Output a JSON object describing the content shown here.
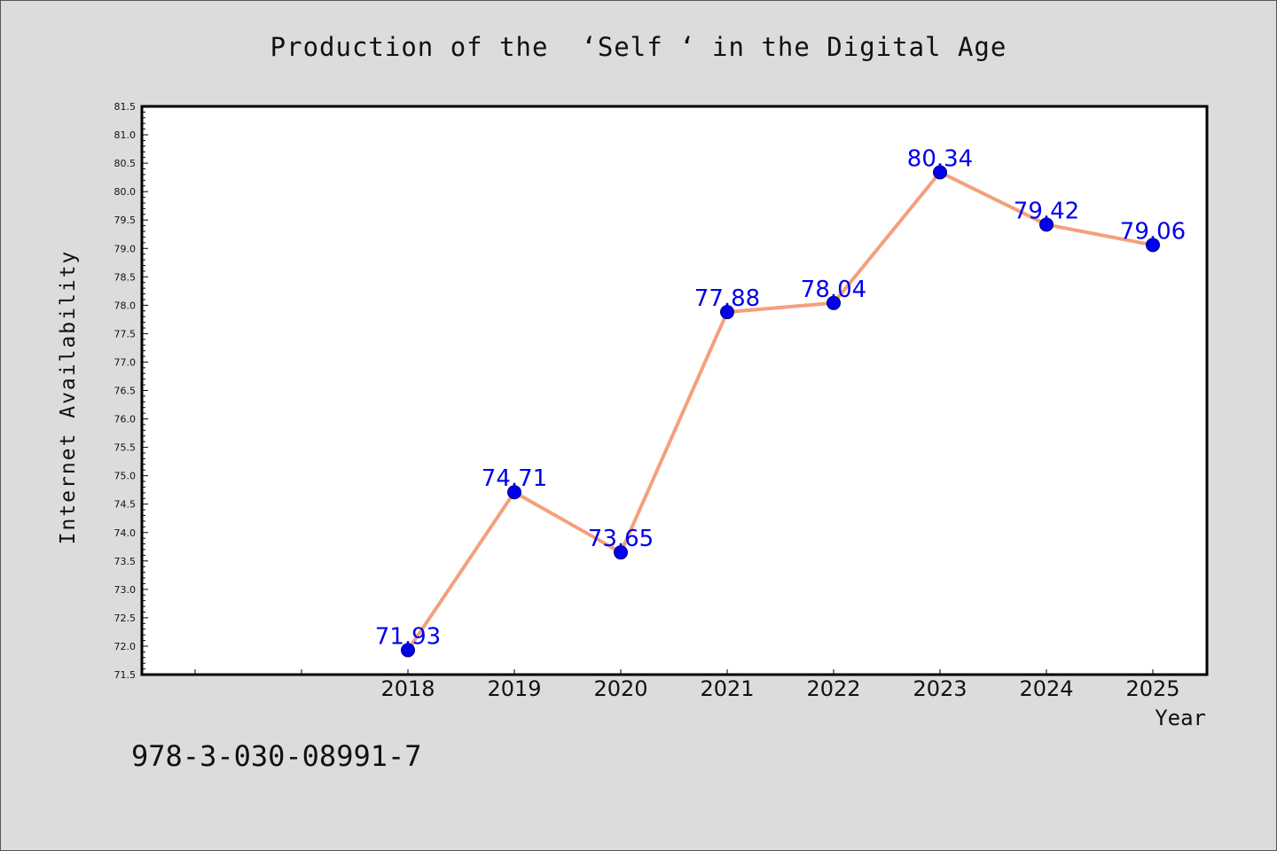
{
  "chart_data": {
    "type": "line",
    "title": "Production of the  ‘Self ‘ in the Digital Age",
    "xlabel": "Year",
    "ylabel": "Internet Availability",
    "x": [
      "2018",
      "2019",
      "2020",
      "2021",
      "2022",
      "2023",
      "2024",
      "2025"
    ],
    "series": [
      {
        "values": [
          71.93,
          74.71,
          73.65,
          77.88,
          78.04,
          80.34,
          79.42,
          79.06
        ],
        "labels": [
          "71.93",
          "74.71",
          "73.65",
          "77.88",
          "78.04",
          "80.34",
          "79.42",
          "79.06"
        ]
      }
    ],
    "ylim": [
      71.5,
      81.5
    ],
    "yticks": [
      "71.5",
      "72.0",
      "72.5",
      "73.0",
      "73.5",
      "74.0",
      "74.5",
      "75.0",
      "75.5",
      "76.0",
      "76.5",
      "77.0",
      "77.5",
      "78.0",
      "78.5",
      "79.0",
      "79.5",
      "80.0",
      "80.5",
      "81.0",
      "81.5"
    ],
    "grid": false,
    "colors": {
      "line": "#f4a07c",
      "marker": "#0000ee",
      "label": "#0000ee"
    }
  },
  "footer": {
    "isbn": "978-3-030-08991-7"
  }
}
